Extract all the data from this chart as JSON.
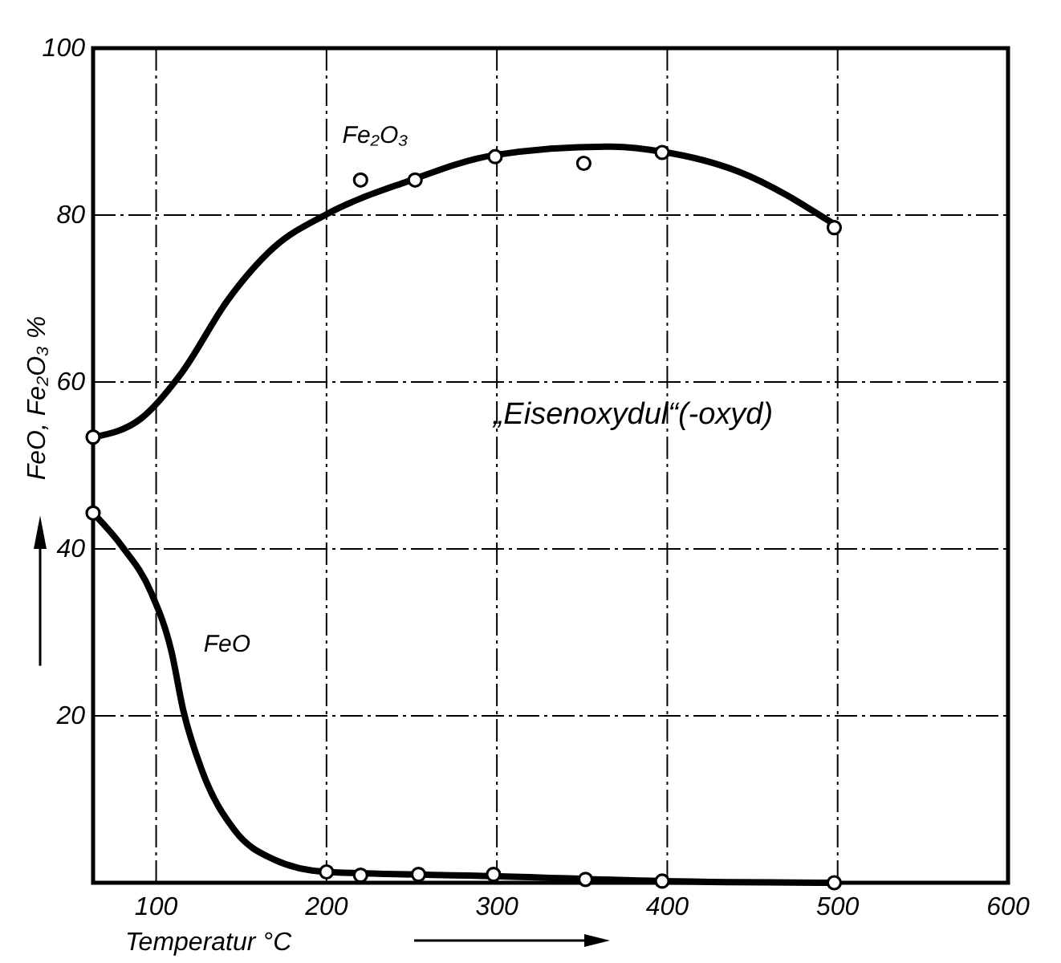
{
  "chart_data": {
    "type": "line",
    "xlabel": "Temperatur °C",
    "ylabel": "FeO, Fe₂O₃ %",
    "annotations": [
      "„Eisenoxydul“(-oxyd)"
    ],
    "xlim": [
      63,
      600
    ],
    "ylim": [
      0,
      100
    ],
    "xticks": [
      100,
      200,
      300,
      400,
      500,
      600
    ],
    "yticks": [
      20,
      40,
      60,
      80,
      100
    ],
    "grid": true,
    "series": [
      {
        "name": "Fe₂O₃",
        "color": "#000000",
        "marker": "none",
        "x": [
          63,
          91,
          115,
          142,
          169,
          200,
          247,
          299,
          364,
          397,
          442,
          498
        ],
        "values": [
          53.4,
          55.6,
          61.1,
          69.8,
          76.1,
          80.1,
          84.0,
          87.2,
          88.2,
          87.6,
          85.2,
          78.9
        ]
      },
      {
        "color": "#000000",
        "type": "scatter",
        "marker": "circle",
        "x": [
          63,
          220,
          252,
          299,
          351,
          397,
          498
        ],
        "values": [
          53.4,
          84.2,
          84.2,
          87.0,
          86.2,
          87.5,
          78.5
        ]
      },
      {
        "name": "FeO",
        "color": "#000000",
        "marker": "none",
        "x": [
          63,
          80,
          97,
          109,
          116,
          127,
          146,
          169,
          200,
          298,
          397,
          498
        ],
        "values": [
          44.3,
          40.3,
          34.8,
          27.7,
          20.6,
          13.4,
          6.3,
          2.8,
          1.3,
          0.8,
          0.2,
          0
        ]
      },
      {
        "color": "#000000",
        "type": "scatter",
        "marker": "circle",
        "x": [
          63,
          200,
          220,
          254,
          298,
          352,
          397,
          498
        ],
        "values": [
          44.3,
          1.3,
          0.9,
          1.0,
          1.0,
          0.4,
          0.2,
          0
        ]
      }
    ]
  }
}
